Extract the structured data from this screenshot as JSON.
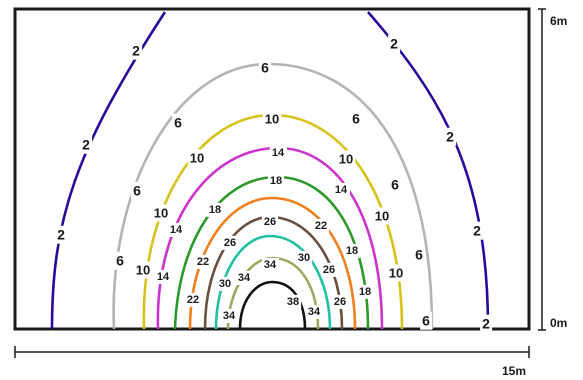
{
  "scale": {
    "width_label": "15m",
    "height_top_label": "6m",
    "height_bottom_label": "0m"
  },
  "contours": [
    {
      "level": "2",
      "color": "#2a0a9a"
    },
    {
      "level": "6",
      "color": "#b4b4b4"
    },
    {
      "level": "10",
      "color": "#d6c21a"
    },
    {
      "level": "14",
      "color": "#cc33cc"
    },
    {
      "level": "18",
      "color": "#2b9a2b"
    },
    {
      "level": "22",
      "color": "#f08020"
    },
    {
      "level": "26",
      "color": "#6b5040"
    },
    {
      "level": "30",
      "color": "#20c0a0"
    },
    {
      "level": "34",
      "color": "#a0a860"
    },
    {
      "level": "38",
      "color": "#111111"
    }
  ]
}
